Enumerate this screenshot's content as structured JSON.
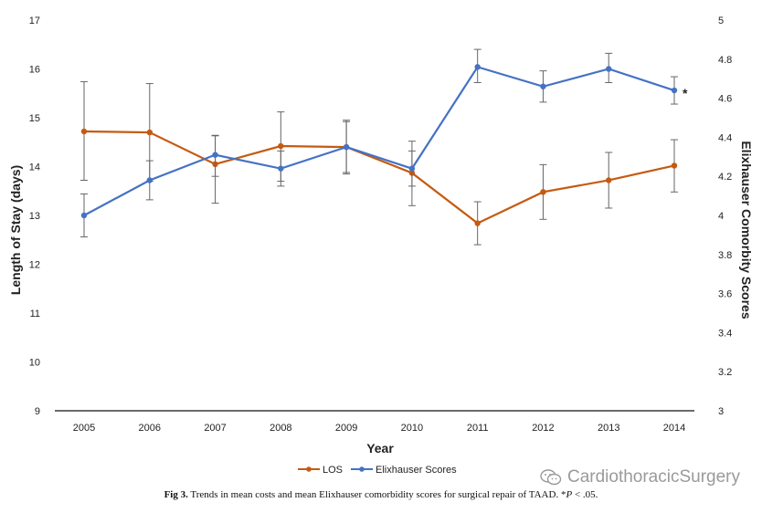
{
  "colors": {
    "los": "#C55A11",
    "elix": "#4472C4",
    "error": "#666666",
    "axis": "#111111"
  },
  "caption": {
    "label": "Fig 3.",
    "text_before_p": "Trends in mean costs and mean Elixhauser comorbidity scores for surgical repair of TAAD. *",
    "p_symbol": "P",
    "text_after_p": " < .05."
  },
  "watermark": {
    "text": "CardiothoracicSurgery",
    "icon": "wechat-icon"
  },
  "chart_data": {
    "type": "line",
    "xlabel": "Year",
    "ylabel_left": "Length of Stay (days)",
    "ylabel_right": "Elixhauser Comorbity Scores",
    "categories": [
      "2005",
      "2006",
      "2007",
      "2008",
      "2009",
      "2010",
      "2011",
      "2012",
      "2013",
      "2014"
    ],
    "ylim_left": [
      9,
      17
    ],
    "yticks_left": [
      "9",
      "10",
      "11",
      "12",
      "13",
      "14",
      "15",
      "16",
      "17"
    ],
    "ylim_right": [
      3,
      5
    ],
    "yticks_right": [
      "3",
      "3.2",
      "3.4",
      "3.6",
      "3.8",
      "4",
      "4.2",
      "4.4",
      "4.6",
      "4.8",
      "5"
    ],
    "legend_position": "bottom",
    "grid": false,
    "annotation": {
      "text": "*",
      "series": "Elixhauser Scores",
      "category": "2014"
    },
    "series": [
      {
        "name": "LOS",
        "axis": "left",
        "values": [
          14.72,
          14.7,
          14.05,
          14.42,
          14.4,
          13.87,
          12.84,
          13.48,
          13.72,
          14.02
        ],
        "error_low": [
          13.72,
          13.7,
          13.25,
          13.7,
          13.85,
          13.2,
          12.4,
          12.92,
          13.15,
          13.48
        ],
        "error_high": [
          15.74,
          15.7,
          14.63,
          15.12,
          14.95,
          14.52,
          13.28,
          14.04,
          14.29,
          14.55
        ]
      },
      {
        "name": "Elixhauser Scores",
        "axis": "right",
        "values": [
          4.0,
          4.18,
          4.31,
          4.24,
          4.35,
          4.24,
          4.76,
          4.66,
          4.75,
          4.64
        ],
        "error_low": [
          3.89,
          4.08,
          4.2,
          4.15,
          4.22,
          4.15,
          4.68,
          4.58,
          4.68,
          4.57
        ],
        "error_high": [
          4.11,
          4.28,
          4.41,
          4.33,
          4.48,
          4.33,
          4.85,
          4.74,
          4.83,
          4.71
        ]
      }
    ]
  }
}
